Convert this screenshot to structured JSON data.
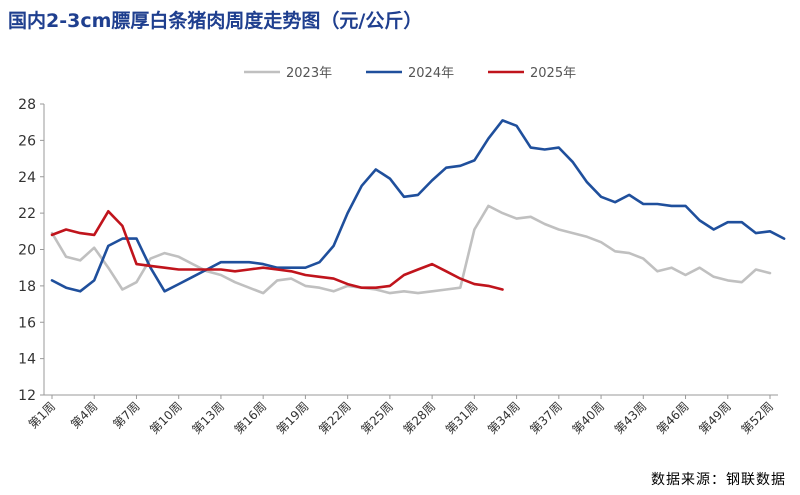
{
  "title": "国内2-3cm膘厚白条猪肉周度走势图（元/公斤）",
  "source": "数据来源：钢联数据",
  "chart_data": {
    "type": "line",
    "title": "国内2-3cm膘厚白条猪肉周度走势图（元/公斤）",
    "xlabel": "",
    "ylabel": "",
    "ylim": [
      12,
      28
    ],
    "yticks": [
      12,
      14,
      16,
      18,
      20,
      22,
      24,
      26,
      28
    ],
    "x_tick_labels": [
      "第1周",
      "第4周",
      "第7周",
      "第10周",
      "第13周",
      "第16周",
      "第19周",
      "第22周",
      "第25周",
      "第28周",
      "第31周",
      "第34周",
      "第37周",
      "第40周",
      "第43周",
      "第46周",
      "第49周",
      "第52周"
    ],
    "x_tick_weeks": [
      1,
      4,
      7,
      10,
      13,
      16,
      19,
      22,
      25,
      28,
      31,
      34,
      37,
      40,
      43,
      46,
      49,
      52
    ],
    "x_range": [
      1,
      52
    ],
    "legend_position": "top-center",
    "grid": false,
    "series": [
      {
        "name": "2023年",
        "color": "#c0c0c0",
        "values": [
          20.9,
          19.6,
          19.4,
          20.1,
          19.0,
          17.8,
          18.2,
          19.5,
          19.8,
          19.6,
          19.2,
          18.8,
          18.6,
          18.2,
          17.9,
          17.6,
          18.3,
          18.4,
          18.0,
          17.9,
          17.7,
          18.0,
          17.9,
          17.8,
          17.6,
          17.7,
          17.6,
          17.7,
          17.8,
          17.9,
          21.1,
          22.4,
          22.0,
          21.7,
          21.8,
          21.4,
          21.1,
          20.9,
          20.7,
          20.4,
          19.9,
          19.8,
          19.5,
          18.8,
          19.0,
          18.6,
          19.0,
          18.5,
          18.3,
          18.2,
          18.9,
          18.7
        ]
      },
      {
        "name": "2024年",
        "color": "#1f4f9c",
        "values": [
          18.3,
          17.9,
          17.7,
          18.3,
          20.2,
          20.6,
          20.6,
          19.0,
          17.7,
          18.1,
          18.5,
          18.9,
          19.3,
          19.3,
          19.3,
          19.2,
          19.0,
          19.0,
          19.0,
          19.3,
          20.2,
          22.0,
          23.5,
          24.4,
          23.9,
          22.9,
          23.0,
          23.8,
          24.5,
          24.6,
          24.9,
          26.1,
          27.1,
          26.8,
          25.6,
          25.5,
          25.6,
          24.8,
          23.7,
          22.9,
          22.6,
          23.0,
          22.5,
          22.5,
          22.4,
          22.4,
          21.6,
          21.1,
          21.5,
          21.5,
          20.9,
          21.0,
          20.6
        ]
      },
      {
        "name": "2025年",
        "color": "#c0141c",
        "values": [
          20.8,
          21.1,
          20.9,
          20.8,
          22.1,
          21.3,
          19.2,
          19.1,
          19.0,
          18.9,
          18.9,
          18.9,
          18.9,
          18.8,
          18.9,
          19.0,
          18.9,
          18.8,
          18.6,
          18.5,
          18.4,
          18.1,
          17.9,
          17.9,
          18.0,
          18.6,
          18.9,
          19.2,
          18.8,
          18.4,
          18.1,
          18.0,
          17.8
        ]
      }
    ]
  }
}
